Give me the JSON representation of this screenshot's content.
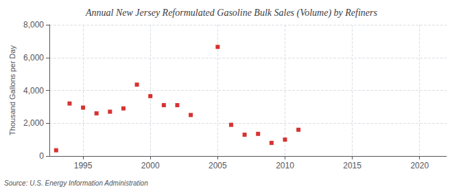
{
  "chart_data": {
    "type": "scatter",
    "title": "Annual New Jersey Reformulated Gasoline Bulk Sales (Volume) by Refiners",
    "ylabel": "Thousand Gallons per Day",
    "source": "Source: U.S. Energy Information Administration",
    "x": [
      1993,
      1994,
      1995,
      1996,
      1997,
      1998,
      1999,
      2000,
      2001,
      2002,
      2003,
      2005,
      2006,
      2007,
      2008,
      2009,
      2010,
      2011
    ],
    "values": [
      350,
      3200,
      2950,
      2600,
      2700,
      2900,
      4350,
      3650,
      3100,
      3100,
      2500,
      6650,
      1900,
      1300,
      1350,
      800,
      1000,
      1600
    ],
    "color": "#cc0000",
    "marker": "square",
    "xlim": [
      1992.5,
      2022
    ],
    "xticks": [
      1995,
      2000,
      2005,
      2010,
      2015,
      2020
    ],
    "ylim": [
      0,
      8000
    ],
    "yticks": [
      0,
      {
        "value": 2000,
        "label": "2,000"
      },
      {
        "value": 4000,
        "label": "4,000"
      },
      {
        "value": 6000,
        "label": "6,000"
      },
      {
        "value": 8000,
        "label": "8,000"
      }
    ],
    "grid": true
  }
}
